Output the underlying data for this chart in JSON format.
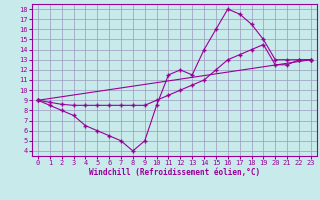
{
  "xlabel": "Windchill (Refroidissement éolien,°C)",
  "bg_color": "#c8eaea",
  "grid_color": "#9999bb",
  "line_color": "#990099",
  "xlim": [
    -0.5,
    23.5
  ],
  "ylim": [
    3.5,
    18.5
  ],
  "xticks": [
    0,
    1,
    2,
    3,
    4,
    5,
    6,
    7,
    8,
    9,
    10,
    11,
    12,
    13,
    14,
    15,
    16,
    17,
    18,
    19,
    20,
    21,
    22,
    23
  ],
  "yticks": [
    4,
    5,
    6,
    7,
    8,
    9,
    10,
    11,
    12,
    13,
    14,
    15,
    16,
    17,
    18
  ],
  "line1_x": [
    0,
    1,
    2,
    3,
    4,
    5,
    6,
    7,
    8,
    9,
    10,
    11,
    12,
    13,
    14,
    15,
    16,
    17,
    18,
    19,
    20,
    21,
    22,
    23
  ],
  "line1_y": [
    9,
    8.5,
    8,
    7.5,
    6.5,
    6,
    5.5,
    5,
    4,
    5,
    8.5,
    11.5,
    12,
    11.5,
    14,
    16,
    18,
    17.5,
    16.5,
    15,
    13,
    13,
    13,
    13
  ],
  "line2_x": [
    0,
    1,
    2,
    3,
    4,
    5,
    6,
    7,
    8,
    9,
    10,
    11,
    12,
    13,
    14,
    15,
    16,
    17,
    18,
    19,
    20,
    21,
    22,
    23
  ],
  "line2_y": [
    9,
    8.8,
    8.6,
    8.5,
    8.5,
    8.5,
    8.5,
    8.5,
    8.5,
    8.5,
    9,
    9.5,
    10,
    10.5,
    11,
    12,
    13,
    13.5,
    14,
    14.5,
    12.5,
    12.5,
    13,
    13
  ],
  "line3_x": [
    0,
    23
  ],
  "line3_y": [
    9,
    13
  ],
  "figsize": [
    3.2,
    2.0
  ],
  "dpi": 100
}
